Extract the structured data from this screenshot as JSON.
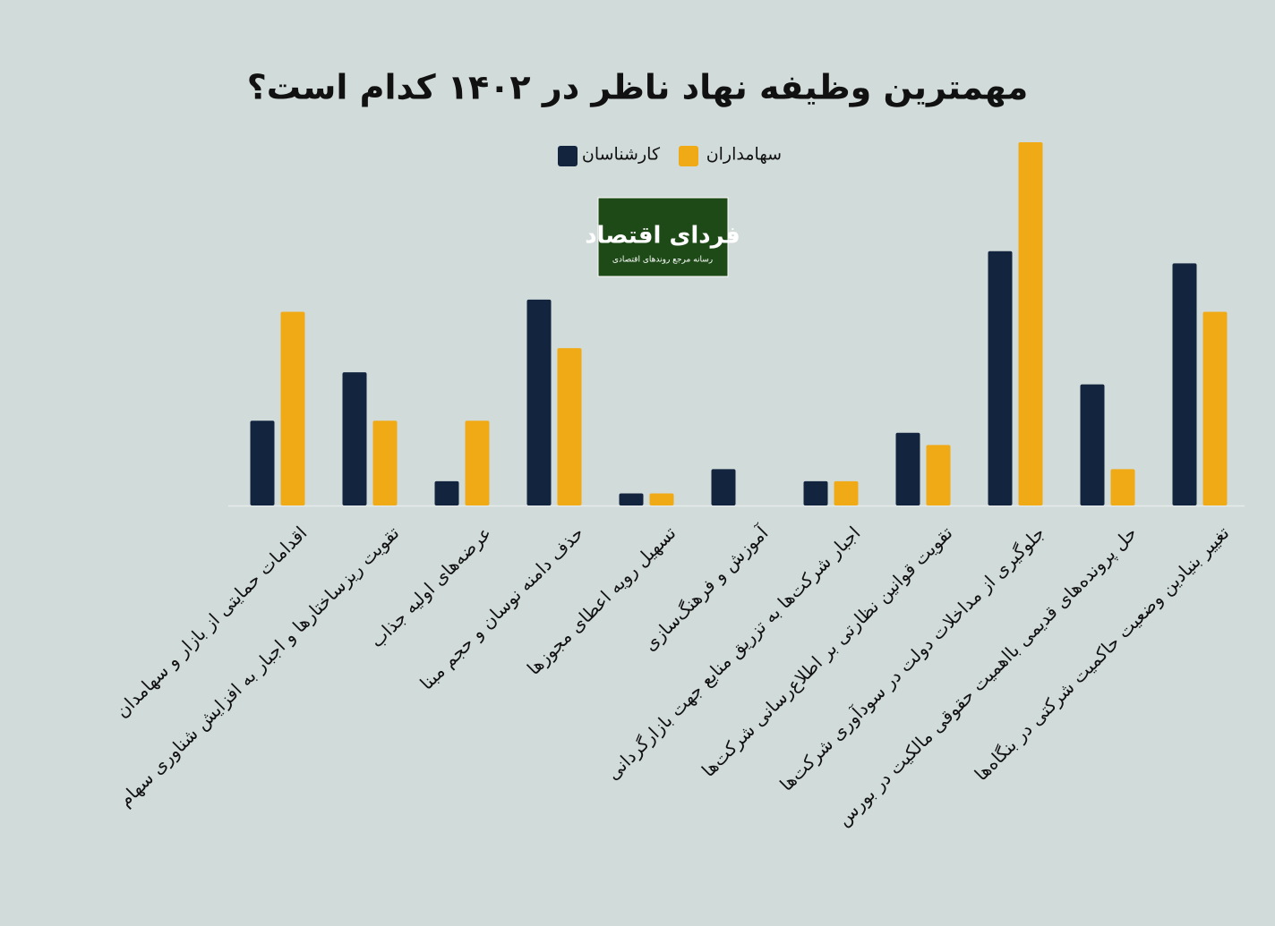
{
  "chart_data": {
    "type": "bar",
    "title": "مهمترین وظیفه نهاد ناظر در ۱۴۰۲ کدام است؟",
    "logo": {
      "name": "فردای اقتصاد",
      "tagline": "رسانه مرجع روندهای اقتصادی"
    },
    "categories": [
      "اقدامات حمایتی از بازار و سهامدان",
      "تقویت ریزساختارها و اجبار به افزایش شناوری سهام",
      "عرضه‌های اولیه جذاب",
      "حذف دامنه نوسان و حجم مبنا",
      "تسهیل رویه اعطای مجوزها",
      "آموزش و فرهنگ‌سازی",
      "اجبار شرکت‌ها به تزریق منابع جهت بازارگردانی",
      "تقویت قوانین نظارتی بر اطلاع‌رسانی شرکت‌ها",
      "جلوگیری از مداخلات دولت در سودآوری شرکت‌ها",
      "حل پرونده‌های قدیمی بااهمیت حقوقی مالکیت در بورس",
      "تغییر بنیادین وضعیت حاکمیت شرکتی در بنگاه‌ها"
    ],
    "series": [
      {
        "name": "کارشناسان",
        "color": "#13243f",
        "values": [
          7,
          11,
          2,
          17,
          1,
          3,
          2,
          6,
          21,
          10,
          20
        ]
      },
      {
        "name": "سهامداران",
        "color": "#efaa16",
        "values": [
          16,
          7,
          7,
          13,
          1,
          0,
          2,
          5,
          30,
          3,
          16
        ]
      }
    ]
  }
}
